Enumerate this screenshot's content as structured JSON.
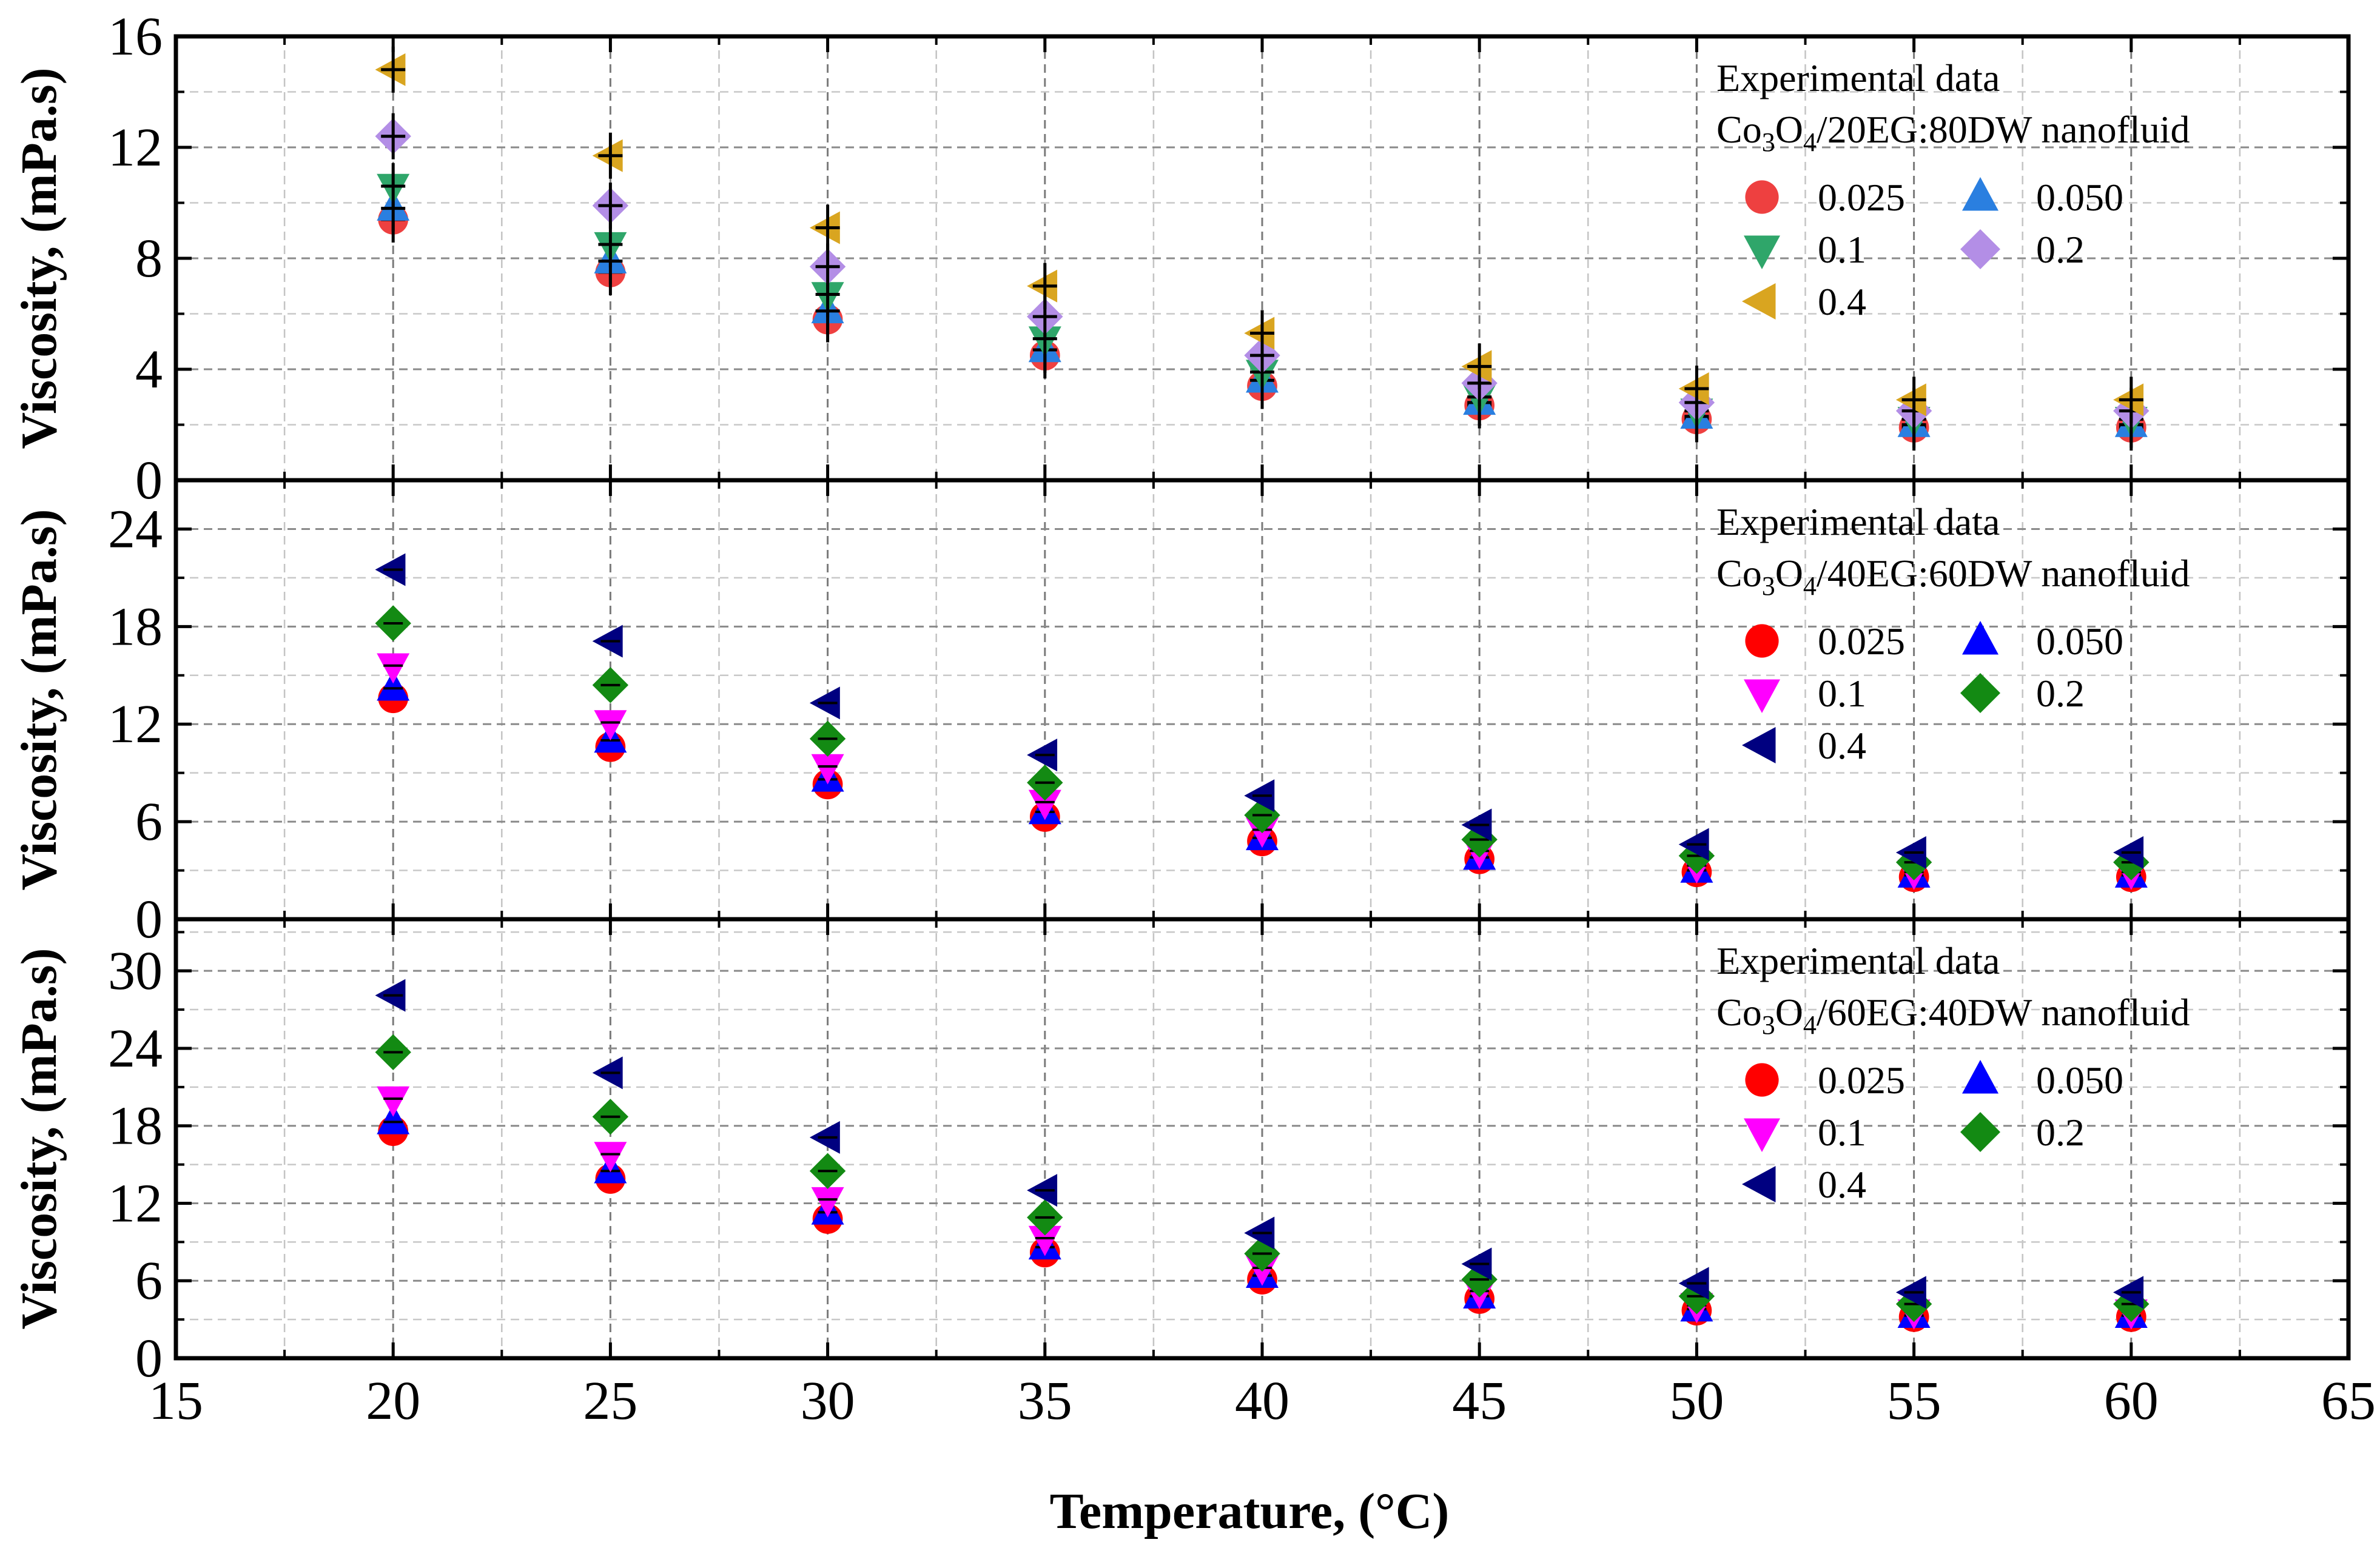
{
  "chart_data": {
    "type": "scatter",
    "x_axis": {
      "label": "Temperature, (°C)",
      "range": [
        15,
        65
      ],
      "ticks": [
        "15",
        "20",
        "25",
        "30",
        "35",
        "40",
        "45",
        "50",
        "55",
        "60",
        "65"
      ]
    },
    "colors": {
      "0.025": [
        "#ee4040",
        "#ff0000",
        "#ff0000"
      ],
      "0.050": [
        "#2a7fe0",
        "#0000ff",
        "#0000ff"
      ],
      "0.1": [
        "#2fa66a",
        "#ff00ff",
        "#ff00ff"
      ],
      "0.2": [
        "#b38ee6",
        "#138a13",
        "#138a13"
      ],
      "0.4": [
        "#d9a520",
        "#000080",
        "#000080"
      ]
    },
    "panels": [
      {
        "ylabel": "Viscosity, (mPa.s)",
        "ylim": [
          0,
          16
        ],
        "yticks": [
          "0",
          "4",
          "8",
          "12",
          "16"
        ],
        "legend": {
          "title_line1": "Experimental data",
          "formula_a": "Co",
          "formula_sub1": "3",
          "formula_b": "O",
          "formula_sub2": "4",
          "formula_c": "/20EG:80DW nanofluid",
          "labels": [
            "0.025",
            "0.050",
            "0.1",
            "0.2",
            "0.4"
          ]
        },
        "x": [
          20,
          25,
          30,
          35,
          40,
          45,
          50,
          55,
          60
        ],
        "series": [
          {
            "name": "0.025",
            "marker": "circle",
            "values": [
              9.4,
              7.5,
              5.8,
              4.5,
              3.4,
              2.7,
              2.2,
              1.9,
              1.9
            ]
          },
          {
            "name": "0.050",
            "marker": "triangle-up",
            "values": [
              9.8,
              7.9,
              6.1,
              4.7,
              3.6,
              2.8,
              2.3,
              2.0,
              2.0
            ]
          },
          {
            "name": "0.1",
            "marker": "triangle-down",
            "values": [
              10.6,
              8.5,
              6.7,
              5.1,
              3.9,
              3.0,
              2.5,
              2.2,
              2.2
            ]
          },
          {
            "name": "0.2",
            "marker": "diamond",
            "values": [
              12.4,
              9.9,
              7.7,
              5.9,
              4.5,
              3.5,
              2.8,
              2.5,
              2.5
            ]
          },
          {
            "name": "0.4",
            "marker": "triangle-left",
            "values": [
              14.8,
              11.7,
              9.1,
              7.0,
              5.3,
              4.1,
              3.3,
              2.9,
              2.9
            ]
          }
        ]
      },
      {
        "ylabel": "Viscosity, (mPa.s)",
        "ylim": [
          0,
          27
        ],
        "yticks": [
          "0",
          "6",
          "12",
          "18",
          "24"
        ],
        "legend": {
          "title_line1": "Experimental data",
          "formula_a": "Co",
          "formula_sub1": "3",
          "formula_b": "O",
          "formula_sub2": "4",
          "formula_c": "/40EG:60DW nanofluid",
          "labels": [
            "0.025",
            "0.050",
            "0.1",
            "0.2",
            "0.4"
          ]
        },
        "x": [
          20,
          25,
          30,
          35,
          40,
          45,
          50,
          55,
          60
        ],
        "series": [
          {
            "name": "0.025",
            "marker": "circle",
            "values": [
              13.6,
              10.6,
              8.3,
              6.3,
              4.8,
              3.7,
              2.9,
              2.6,
              2.6
            ]
          },
          {
            "name": "0.050",
            "marker": "triangle-up",
            "values": [
              14.2,
              11.0,
              8.6,
              6.6,
              5.0,
              3.8,
              3.0,
              2.7,
              2.7
            ]
          },
          {
            "name": "0.1",
            "marker": "triangle-down",
            "values": [
              15.6,
              12.1,
              9.4,
              7.2,
              5.5,
              4.2,
              3.3,
              2.9,
              2.9
            ]
          },
          {
            "name": "0.2",
            "marker": "diamond",
            "values": [
              18.2,
              14.4,
              11.1,
              8.4,
              6.4,
              4.9,
              3.9,
              3.5,
              3.5
            ]
          },
          {
            "name": "0.4",
            "marker": "triangle-left",
            "values": [
              21.5,
              17.1,
              13.3,
              10.1,
              7.6,
              5.8,
              4.6,
              4.1,
              4.1
            ]
          }
        ]
      },
      {
        "ylabel": "Viscosity, (mPa.s)",
        "ylim": [
          0,
          34
        ],
        "yticks": [
          "0",
          "6",
          "12",
          "18",
          "24",
          "30"
        ],
        "legend": {
          "title_line1": "Experimental data",
          "formula_a": "Co",
          "formula_sub1": "3",
          "formula_b": "O",
          "formula_sub2": "4",
          "formula_c": "/60EG:40DW nanofluid",
          "labels": [
            "0.025",
            "0.050",
            "0.1",
            "0.2",
            "0.4"
          ]
        },
        "x": [
          20,
          25,
          30,
          35,
          40,
          45,
          50,
          55,
          60
        ],
        "series": [
          {
            "name": "0.025",
            "marker": "circle",
            "values": [
              17.6,
              13.9,
              10.8,
              8.2,
              6.1,
              4.6,
              3.7,
              3.2,
              3.2
            ]
          },
          {
            "name": "0.050",
            "marker": "triangle-up",
            "values": [
              18.3,
              14.5,
              11.3,
              8.6,
              6.4,
              4.8,
              3.8,
              3.3,
              3.3
            ]
          },
          {
            "name": "0.1",
            "marker": "triangle-down",
            "values": [
              20.1,
              15.8,
              12.3,
              9.3,
              7.0,
              5.2,
              4.1,
              3.6,
              3.6
            ]
          },
          {
            "name": "0.2",
            "marker": "diamond",
            "values": [
              23.7,
              18.7,
              14.5,
              10.9,
              8.1,
              6.1,
              4.8,
              4.2,
              4.2
            ]
          },
          {
            "name": "0.4",
            "marker": "triangle-left",
            "values": [
              28.1,
              22.1,
              17.1,
              13.0,
              9.7,
              7.3,
              5.8,
              5.1,
              5.1
            ]
          }
        ]
      }
    ]
  }
}
